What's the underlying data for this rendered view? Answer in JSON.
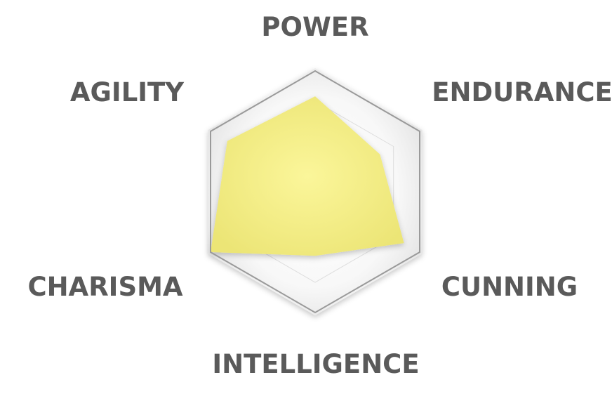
{
  "chart_data": {
    "type": "radar",
    "title": "",
    "axes": [
      "POWER",
      "ENDURANCE",
      "CUNNING",
      "INTELLIGENCE",
      "CHARISMA",
      "AGILITY"
    ],
    "series": [
      {
        "values": [
          0.79,
          0.62,
          0.85,
          0.53,
          1.0,
          0.84
        ]
      }
    ],
    "range": [
      0,
      1
    ],
    "grid_levels": 2,
    "grid": true,
    "legend": "none",
    "colors": {
      "fill": "#f4ef82",
      "frame_stroke": "#9a9a9a",
      "inner_grid_stroke": "#dddddd",
      "background_inner": "#ffffff",
      "background_outer": "#ececec",
      "label": "#5a5a5a"
    }
  }
}
